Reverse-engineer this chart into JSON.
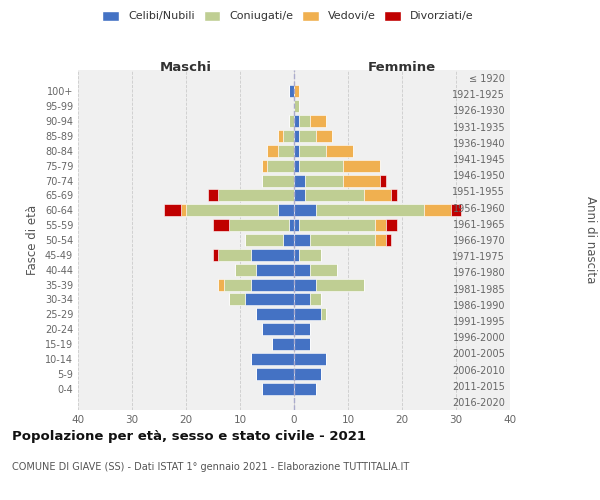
{
  "age_groups": [
    "100+",
    "95-99",
    "90-94",
    "85-89",
    "80-84",
    "75-79",
    "70-74",
    "65-69",
    "60-64",
    "55-59",
    "50-54",
    "45-49",
    "40-44",
    "35-39",
    "30-34",
    "25-29",
    "20-24",
    "15-19",
    "10-14",
    "5-9",
    "0-4"
  ],
  "birth_years": [
    "≤ 1920",
    "1921-1925",
    "1926-1930",
    "1931-1935",
    "1936-1940",
    "1941-1945",
    "1946-1950",
    "1951-1955",
    "1956-1960",
    "1961-1965",
    "1966-1970",
    "1971-1975",
    "1976-1980",
    "1981-1985",
    "1986-1990",
    "1991-1995",
    "1996-2000",
    "2001-2005",
    "2006-2010",
    "2011-2015",
    "2016-2020"
  ],
  "male": {
    "celibi": [
      1,
      0,
      0,
      0,
      0,
      0,
      0,
      0,
      3,
      1,
      2,
      8,
      7,
      8,
      9,
      7,
      6,
      4,
      8,
      7,
      6
    ],
    "coniugati": [
      0,
      0,
      1,
      2,
      3,
      5,
      6,
      14,
      17,
      11,
      7,
      6,
      4,
      5,
      3,
      0,
      0,
      0,
      0,
      0,
      0
    ],
    "vedovi": [
      0,
      0,
      0,
      1,
      2,
      1,
      0,
      0,
      1,
      0,
      0,
      0,
      0,
      1,
      0,
      0,
      0,
      0,
      0,
      0,
      0
    ],
    "divorziati": [
      0,
      0,
      0,
      0,
      0,
      0,
      0,
      2,
      3,
      3,
      0,
      1,
      0,
      0,
      0,
      0,
      0,
      0,
      0,
      0,
      0
    ]
  },
  "female": {
    "nubili": [
      0,
      0,
      1,
      1,
      1,
      1,
      2,
      2,
      4,
      1,
      3,
      1,
      3,
      4,
      3,
      5,
      3,
      3,
      6,
      5,
      4
    ],
    "coniugate": [
      0,
      1,
      2,
      3,
      5,
      8,
      7,
      11,
      20,
      14,
      12,
      4,
      5,
      9,
      2,
      1,
      0,
      0,
      0,
      0,
      0
    ],
    "vedove": [
      1,
      0,
      3,
      3,
      5,
      7,
      7,
      5,
      5,
      2,
      2,
      0,
      0,
      0,
      0,
      0,
      0,
      0,
      0,
      0,
      0
    ],
    "divorziate": [
      0,
      0,
      0,
      0,
      0,
      0,
      1,
      1,
      2,
      2,
      1,
      0,
      0,
      0,
      0,
      0,
      0,
      0,
      0,
      0,
      0
    ]
  },
  "colors": {
    "celibi": "#4472C4",
    "coniugati": "#BFCE93",
    "vedovi": "#F0B050",
    "divorziati": "#C00000"
  },
  "xlim": 40,
  "title": "Popolazione per età, sesso e stato civile - 2021",
  "subtitle": "COMUNE DI GIAVE (SS) - Dati ISTAT 1° gennaio 2021 - Elaborazione TUTTITALIA.IT",
  "ylabel_left": "Fasce di età",
  "ylabel_right": "Anni di nascita",
  "legend_labels": [
    "Celibi/Nubili",
    "Coniugati/e",
    "Vedovi/e",
    "Divorziati/e"
  ],
  "maschi_label": "Maschi",
  "femmine_label": "Femmine",
  "bg_color": "#ffffff",
  "plot_bg_color": "#f0f0f0"
}
